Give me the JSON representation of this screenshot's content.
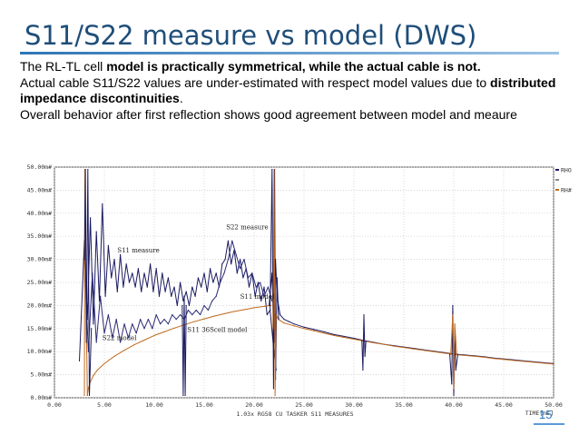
{
  "slide": {
    "title": "S11/S22 measure vs model (DWS)",
    "body": {
      "p1_a": "The RL-TL cell ",
      "p1_b": "model is practically symmetrical, while the actual cable is not",
      "p1_c": ".",
      "p2_a": "Actual cable S11/S22 values are under-estimated with respect  model values due to ",
      "p2_b": "distributed  impedance discontinuities",
      "p2_c": ".",
      "p3": "Overall behavior after first reflection shows good agreement between model and meaure"
    },
    "page_number": "15"
  },
  "chart_data": {
    "type": "line",
    "title": "",
    "xlabel": "TIME[ns]",
    "ylabel": "",
    "caption": "1.03x RG58 CU TASKER S11 MEASURES",
    "xlim": [
      0,
      50
    ],
    "ylim": [
      0,
      50
    ],
    "x_ticks": [
      0,
      5,
      10,
      15,
      20,
      25,
      30,
      35,
      40,
      45,
      50
    ],
    "x_tick_labels": [
      "0.00",
      "5.00",
      "10.00",
      "15.00",
      "20.00",
      "25.00",
      "30.00",
      "35.00",
      "40.00",
      "45.00",
      "50.00"
    ],
    "y_ticks": [
      0,
      5,
      10,
      15,
      20,
      25,
      30,
      35,
      40,
      45,
      50
    ],
    "y_tick_labels": [
      "0.00m#",
      "5.00m#",
      "10.00m#",
      "15.00m#",
      "20.00m#",
      "25.00m#",
      "30.00m#",
      "35.00m#",
      "40.00m#",
      "45.00m#",
      "50.00m#"
    ],
    "grid": true,
    "legend": [
      "RHO",
      "",
      "RH#"
    ],
    "annotations": [
      {
        "text": "S11 measure",
        "x": 6.3,
        "y": 31.5
      },
      {
        "text": "S22 measure",
        "x": 17.2,
        "y": 36.5
      },
      {
        "text": "S11 model",
        "x": 18.6,
        "y": 21.5
      },
      {
        "text": "S22 model",
        "x": 4.8,
        "y": 12.5
      },
      {
        "text": "S11 36Scell model",
        "x": 13.3,
        "y": 14.3
      }
    ],
    "series": [
      {
        "key": "s11-measure",
        "color": "#1a1a60",
        "x": [
          2.5,
          3.0,
          3.3,
          3.6,
          3.9,
          4.2,
          4.5,
          4.8,
          5.1,
          5.4,
          5.7,
          6.0,
          6.3,
          6.6,
          6.9,
          7.2,
          7.5,
          7.8,
          8.1,
          8.4,
          8.7,
          9.0,
          9.3,
          9.6,
          9.9,
          10.2,
          10.5,
          10.8,
          11.1,
          11.4,
          11.7,
          12.0,
          12.3,
          12.6,
          12.9,
          13.2,
          13.5,
          13.8,
          14.1,
          14.4,
          14.7,
          15.0,
          15.3,
          15.6,
          15.9,
          16.2,
          16.5,
          16.8,
          17.1,
          17.4,
          17.7,
          18.0,
          18.3,
          18.6,
          18.9,
          19.2,
          19.5,
          19.8,
          20.1,
          20.4,
          20.7,
          21.0,
          21.3,
          21.6,
          21.9,
          22.2
        ],
        "y": [
          8,
          34,
          17,
          39,
          16,
          36,
          21,
          42,
          22,
          33,
          26,
          30,
          23,
          31,
          24,
          29,
          25,
          27,
          24,
          28,
          23,
          27,
          24,
          29,
          23,
          28,
          22,
          27,
          23,
          26,
          22,
          24,
          20,
          25,
          21,
          23,
          20,
          24,
          22,
          26,
          24,
          27,
          23,
          28,
          25,
          27,
          24,
          29,
          30,
          34,
          29,
          32,
          27,
          30,
          26,
          28,
          24,
          27,
          22,
          25,
          21,
          24,
          18,
          19,
          12,
          6
        ]
      },
      {
        "key": "s22-measure",
        "color": "#2a2a78",
        "x": [
          3.0,
          3.4,
          3.8,
          4.2,
          4.6,
          5.0,
          5.4,
          5.8,
          6.2,
          6.6,
          7.0,
          7.4,
          7.8,
          8.2,
          8.6,
          9.0,
          9.4,
          9.8,
          10.2,
          10.6,
          11.0,
          11.4,
          11.8,
          12.2,
          12.6,
          13.0,
          13.4,
          13.8,
          14.2,
          14.6,
          15.0,
          15.4,
          15.8,
          16.2,
          16.6,
          17.0,
          17.4,
          17.8,
          18.2,
          18.6,
          19.0,
          19.4,
          19.8,
          20.2,
          20.6,
          21.0,
          21.4,
          21.8
        ],
        "y": [
          30,
          10,
          27,
          12,
          22,
          14,
          18,
          13,
          17,
          12,
          16,
          13,
          16,
          14,
          17,
          15,
          17,
          15,
          18,
          16,
          17,
          16,
          18,
          17,
          18,
          17,
          19,
          18,
          19,
          18,
          20,
          19,
          21,
          22,
          25,
          27,
          30,
          34,
          31,
          28,
          30,
          26,
          27,
          24,
          25,
          22,
          24,
          21
        ]
      },
      {
        "key": "s11-model",
        "color": "#c06a1e",
        "x": [
          3.3,
          3.4,
          3.6,
          3.9,
          4.3,
          5.0,
          6.0,
          7.0,
          8.0,
          9.0,
          10.0,
          11.0,
          12.0,
          13.0,
          14.0,
          15.0,
          16.0,
          17.0,
          18.0,
          19.0,
          20.0,
          21.0,
          21.7
        ],
        "y": [
          0.5,
          2,
          3.5,
          4.8,
          6,
          7.4,
          9.0,
          10.3,
          11.5,
          12.5,
          13.5,
          14.3,
          15.1,
          15.8,
          16.5,
          17.1,
          17.7,
          18.2,
          18.7,
          19.1,
          19.5,
          19.8,
          20.0
        ]
      },
      {
        "key": "s11-model-edge",
        "color": "#c06a1e",
        "x": [
          3.0,
          3.05,
          3.15,
          3.3
        ],
        "y": [
          0.5,
          49.5,
          22,
          0.5
        ]
      },
      {
        "key": "decay-measure",
        "color": "#1a1a60",
        "x": [
          21.5,
          21.8,
          22.0,
          22.15,
          22.3,
          22.6,
          23.0,
          23.5,
          24.0,
          25.0,
          26.0,
          27.0,
          28.0,
          29.0,
          30.0,
          31.0,
          32.0,
          33.0,
          34.0,
          35.0,
          36.0,
          37.0,
          38.0,
          39.0,
          40.0,
          41.0,
          42.0,
          43.0,
          44.0,
          45.0,
          46.0,
          47.0,
          48.0,
          49.0,
          50.0
        ],
        "y": [
          20,
          27,
          12,
          30,
          22,
          18,
          17,
          16.5,
          16,
          15.3,
          14.8,
          14.3,
          13.7,
          13.3,
          12.9,
          12.4,
          12.0,
          11.6,
          11.3,
          11.0,
          10.7,
          10.4,
          10.1,
          9.8,
          9.5,
          9.3,
          9.1,
          8.9,
          8.6,
          8.4,
          8.2,
          8.0,
          7.8,
          7.6,
          7.4
        ]
      },
      {
        "key": "decay-model",
        "color": "#c06a1e",
        "x": [
          22.0,
          22.2,
          22.5,
          23.0,
          24.0,
          25.0,
          26.0,
          27.0,
          28.0,
          29.0,
          30.0,
          31.0,
          32.0,
          33.0,
          34.0,
          35.0,
          36.0,
          37.0,
          38.0,
          39.0,
          40.0,
          41.0,
          42.0,
          43.0,
          44.0,
          45.0,
          46.0,
          47.0,
          48.0,
          49.0,
          50.0
        ],
        "y": [
          18.5,
          17.8,
          16.9,
          16.2,
          15.6,
          15.0,
          14.5,
          14.0,
          13.5,
          13.1,
          12.7,
          12.3,
          11.9,
          11.6,
          11.2,
          10.9,
          10.6,
          10.3,
          10.0,
          9.7,
          9.4,
          9.2,
          9.0,
          8.8,
          8.5,
          8.3,
          8.1,
          7.9,
          7.7,
          7.5,
          7.3
        ]
      },
      {
        "key": "spike-3",
        "color": "#1a1a60",
        "x": [
          3.0,
          3.1,
          3.2,
          3.35,
          3.5,
          3.7
        ],
        "y": [
          30,
          49.5,
          12,
          49.5,
          0.5,
          15
        ]
      },
      {
        "key": "spike-13",
        "color": "#1a1a60",
        "x": [
          12.8,
          12.9,
          13.0,
          13.1,
          13.2
        ],
        "y": [
          20,
          0.5,
          22,
          0.5,
          20
        ]
      },
      {
        "key": "spike-22",
        "color": "#1a1a60",
        "x": [
          21.6,
          21.8,
          21.95,
          22.05,
          22.15,
          22.3,
          22.45
        ],
        "y": [
          19,
          49.5,
          2,
          49.5,
          4,
          26,
          17
        ]
      },
      {
        "key": "spike-22-model",
        "color": "#c06a1e",
        "x": [
          21.9,
          22.0,
          22.1,
          22.2
        ],
        "y": [
          15,
          49.5,
          0.5,
          18
        ]
      },
      {
        "key": "spike-31",
        "color": "#1a1a60",
        "x": [
          30.8,
          30.9,
          31.0,
          31.1,
          31.2
        ],
        "y": [
          12.3,
          6,
          18,
          9,
          12.2
        ]
      },
      {
        "key": "spike-40",
        "color": "#1a1a60",
        "x": [
          39.6,
          39.8,
          39.9,
          40.0,
          40.1,
          40.2,
          40.4
        ],
        "y": [
          9.4,
          3,
          20,
          0.5,
          14,
          6,
          9.3
        ]
      },
      {
        "key": "spike-40-model",
        "color": "#c06a1e",
        "x": [
          39.7,
          39.9,
          40.0,
          40.1,
          40.3
        ],
        "y": [
          9.4,
          18,
          2,
          16,
          9.3
        ]
      }
    ]
  }
}
